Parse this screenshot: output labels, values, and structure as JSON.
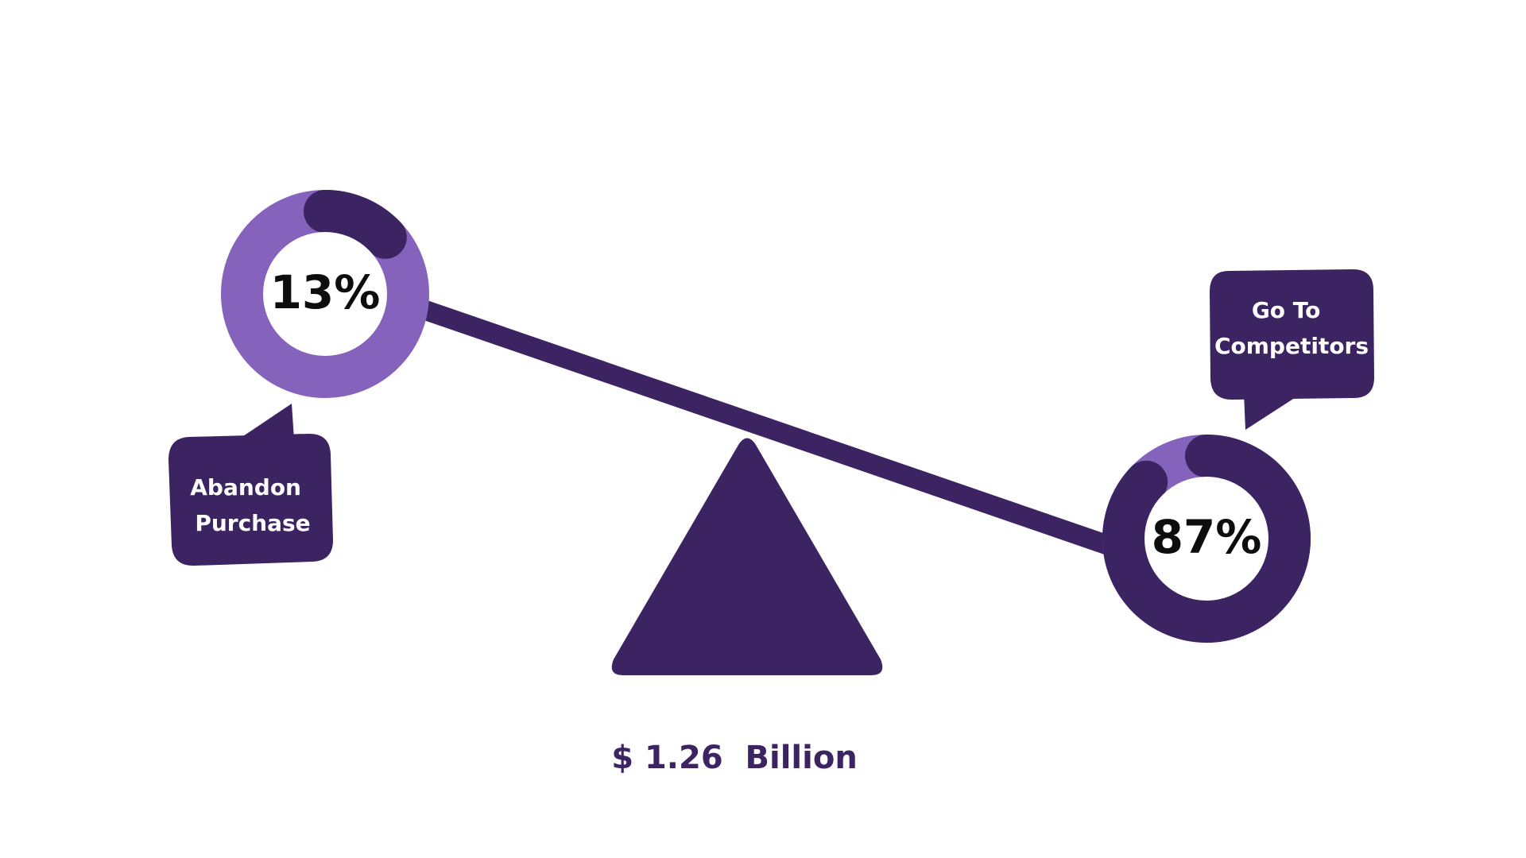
{
  "colors": {
    "dark": "#3c2362",
    "light": "#8563bc",
    "text": "#0d0d0d",
    "bubble_text": "#ffffff",
    "background": "#ffffff"
  },
  "left_gauge": {
    "percent_label": "13%",
    "value": 13,
    "bubble_lines": [
      "Abandon",
      "Purchase"
    ]
  },
  "right_gauge": {
    "percent_label": "87%",
    "value": 87,
    "bubble_lines": [
      "Go To",
      "Competitors"
    ]
  },
  "amount": {
    "text": "$ 1.26  Billion"
  }
}
